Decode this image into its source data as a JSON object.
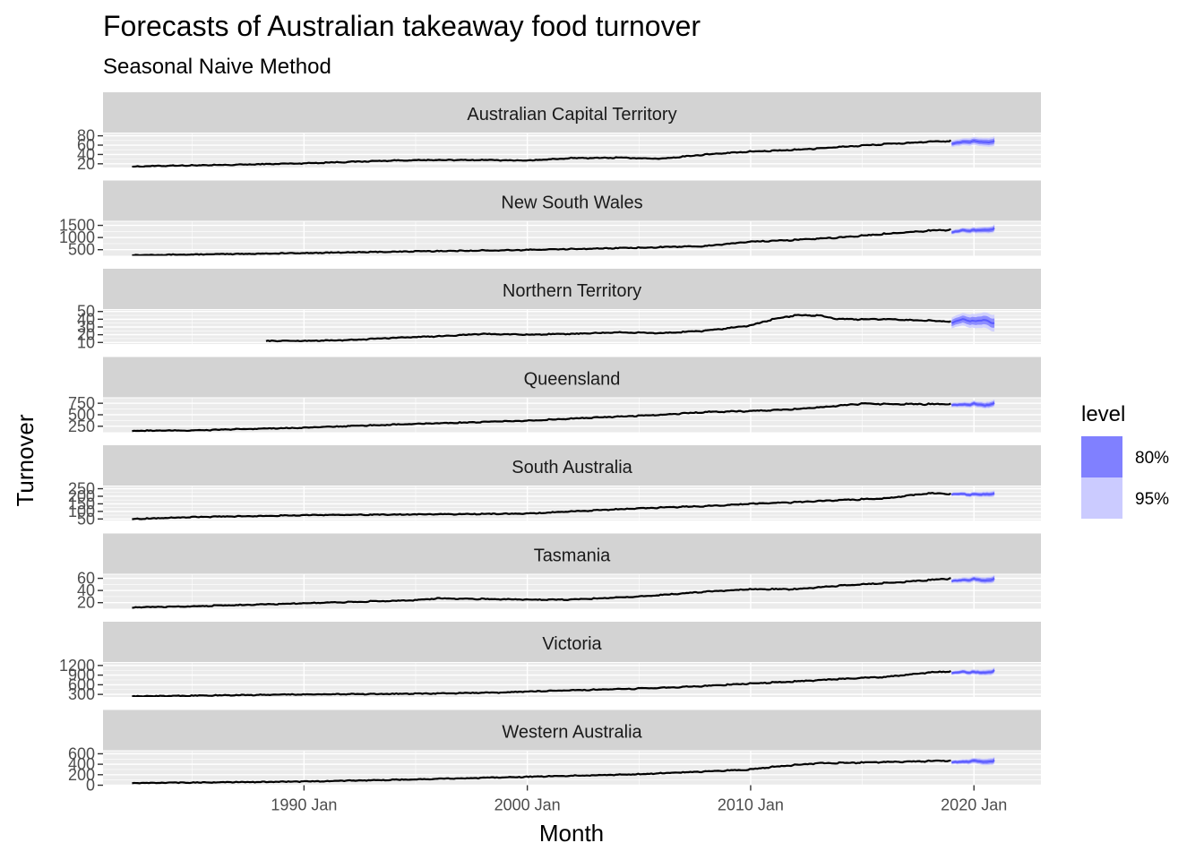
{
  "chart_data": {
    "type": "line",
    "title": "Forecasts of Australian takeaway food turnover",
    "subtitle": "Seasonal Naive Method",
    "xlabel": "Month",
    "ylabel": "Turnover",
    "x_ticks": [
      "1990 Jan",
      "2000 Jan",
      "2010 Jan",
      "2020 Jan"
    ],
    "x_tick_years": [
      1990,
      2000,
      2010,
      2020
    ],
    "xlim": [
      1981,
      2023
    ],
    "grid": true,
    "legend": {
      "title": "level",
      "placement": "right",
      "entries": [
        {
          "label": "80%",
          "color": "#8080ff"
        },
        {
          "label": "95%",
          "color": "#cbcbff"
        }
      ]
    },
    "colors": {
      "history": "#000000",
      "forecast": "#5a5aff",
      "interval80": "#8080ff",
      "interval95": "#cbcbff",
      "panel_bg": "#ebebeb",
      "strip_bg": "#d3d3d3"
    },
    "forecast_range": [
      "2019 Jan",
      "2020 Dec"
    ],
    "facets": [
      {
        "state": "Australian Capital Territory",
        "ylim": [
          12,
          85
        ],
        "y_ticks": [
          20,
          40,
          60,
          80
        ],
        "y_tick_labels": [
          "20",
          "40",
          "60",
          "80"
        ],
        "start": 1982.3,
        "history": [
          [
            1982.3,
            14
          ],
          [
            1984,
            16
          ],
          [
            1986,
            17
          ],
          [
            1988,
            19
          ],
          [
            1990,
            21
          ],
          [
            1992,
            24
          ],
          [
            1994,
            27
          ],
          [
            1996,
            28
          ],
          [
            1998,
            28
          ],
          [
            2000,
            27
          ],
          [
            2002,
            32
          ],
          [
            2004,
            33
          ],
          [
            2006,
            31
          ],
          [
            2008,
            40
          ],
          [
            2010,
            46
          ],
          [
            2012,
            50
          ],
          [
            2014,
            56
          ],
          [
            2016,
            62
          ],
          [
            2018,
            67
          ],
          [
            2019,
            69
          ]
        ],
        "forecast": [
          [
            2019,
            62
          ],
          [
            2019.5,
            67
          ],
          [
            2020,
            68
          ],
          [
            2020.5,
            66
          ],
          [
            2020.99,
            69
          ]
        ],
        "pi80": [
          4,
          6
        ],
        "pi95": [
          7,
          10
        ]
      },
      {
        "state": "New South Wales",
        "ylim": [
          250,
          1650
        ],
        "y_ticks": [
          500,
          1000,
          1500
        ],
        "y_tick_labels": [
          "500",
          "1000",
          "1500"
        ],
        "start": 1982.3,
        "history": [
          [
            1982.3,
            280
          ],
          [
            1985,
            300
          ],
          [
            1990,
            360
          ],
          [
            1995,
            430
          ],
          [
            2000,
            490
          ],
          [
            2005,
            580
          ],
          [
            2008,
            650
          ],
          [
            2010,
            830
          ],
          [
            2012,
            900
          ],
          [
            2014,
            1000
          ],
          [
            2016,
            1150
          ],
          [
            2018,
            1280
          ],
          [
            2019,
            1320
          ]
        ],
        "forecast": [
          [
            2019,
            1200
          ],
          [
            2019.5,
            1300
          ],
          [
            2020,
            1280
          ],
          [
            2020.5,
            1300
          ],
          [
            2020.99,
            1380
          ]
        ],
        "pi80": [
          60,
          100
        ],
        "pi95": [
          90,
          150
        ]
      },
      {
        "state": "Northern Territory",
        "ylim": [
          8,
          52
        ],
        "y_ticks": [
          10,
          20,
          30,
          40,
          50
        ],
        "y_tick_labels": [
          "10",
          "20",
          "30",
          "40",
          "50"
        ],
        "start": 1988.3,
        "history": [
          [
            1988.3,
            12
          ],
          [
            1990,
            12
          ],
          [
            1992,
            13
          ],
          [
            1994,
            16
          ],
          [
            1996,
            18
          ],
          [
            1998,
            21
          ],
          [
            2000,
            20
          ],
          [
            2002,
            21
          ],
          [
            2004,
            23
          ],
          [
            2006,
            22
          ],
          [
            2008,
            25
          ],
          [
            2010,
            32
          ],
          [
            2011,
            40
          ],
          [
            2012,
            45
          ],
          [
            2013,
            45
          ],
          [
            2014,
            40
          ],
          [
            2016,
            40
          ],
          [
            2018,
            38
          ],
          [
            2019,
            37
          ]
        ],
        "forecast": [
          [
            2019,
            35
          ],
          [
            2019.5,
            40
          ],
          [
            2020,
            37
          ],
          [
            2020.5,
            39
          ],
          [
            2020.99,
            34
          ]
        ],
        "pi80": [
          4,
          6
        ],
        "pi95": [
          7,
          11
        ]
      },
      {
        "state": "Queensland",
        "ylim": [
          120,
          860
        ],
        "y_ticks": [
          250,
          500,
          750
        ],
        "y_tick_labels": [
          "250",
          "500",
          "750"
        ],
        "start": 1982.3,
        "history": [
          [
            1982.3,
            150
          ],
          [
            1985,
            160
          ],
          [
            1990,
            220
          ],
          [
            1995,
            300
          ],
          [
            2000,
            370
          ],
          [
            2004,
            460
          ],
          [
            2006,
            500
          ],
          [
            2008,
            560
          ],
          [
            2010,
            580
          ],
          [
            2012,
            620
          ],
          [
            2014,
            700
          ],
          [
            2015,
            740
          ],
          [
            2017,
            730
          ],
          [
            2019,
            730
          ]
        ],
        "forecast": [
          [
            2019,
            700
          ],
          [
            2019.5,
            720
          ],
          [
            2020,
            730
          ],
          [
            2020.5,
            700
          ],
          [
            2020.99,
            760
          ]
        ],
        "pi80": [
          30,
          50
        ],
        "pi95": [
          50,
          80
        ]
      },
      {
        "state": "South Australia",
        "ylim": [
          40,
          265
        ],
        "y_ticks": [
          50,
          100,
          150,
          200,
          250
        ],
        "y_tick_labels": [
          "50",
          "100",
          "150",
          "200",
          "250"
        ],
        "start": 1982.3,
        "history": [
          [
            1982.3,
            50
          ],
          [
            1985,
            62
          ],
          [
            1990,
            75
          ],
          [
            1995,
            80
          ],
          [
            2000,
            85
          ],
          [
            2002,
            100
          ],
          [
            2005,
            120
          ],
          [
            2008,
            135
          ],
          [
            2010,
            150
          ],
          [
            2012,
            160
          ],
          [
            2014,
            175
          ],
          [
            2016,
            185
          ],
          [
            2018,
            220
          ],
          [
            2019,
            215
          ]
        ],
        "forecast": [
          [
            2019,
            210
          ],
          [
            2019.5,
            215
          ],
          [
            2020,
            210
          ],
          [
            2020.5,
            212
          ],
          [
            2020.99,
            220
          ]
        ],
        "pi80": [
          8,
          12
        ],
        "pi95": [
          12,
          20
        ]
      },
      {
        "state": "Tasmania",
        "ylim": [
          10,
          66
        ],
        "y_ticks": [
          20,
          40,
          60
        ],
        "y_tick_labels": [
          "20",
          "40",
          "60"
        ],
        "start": 1982.3,
        "history": [
          [
            1982.3,
            12
          ],
          [
            1985,
            14
          ],
          [
            1990,
            19
          ],
          [
            1995,
            24
          ],
          [
            1996,
            27
          ],
          [
            2000,
            25
          ],
          [
            2002,
            25
          ],
          [
            2005,
            30
          ],
          [
            2008,
            38
          ],
          [
            2010,
            42
          ],
          [
            2012,
            42
          ],
          [
            2014,
            48
          ],
          [
            2016,
            52
          ],
          [
            2018,
            57
          ],
          [
            2019,
            60
          ]
        ],
        "forecast": [
          [
            2019,
            55
          ],
          [
            2019.5,
            57
          ],
          [
            2020,
            58
          ],
          [
            2020.5,
            56
          ],
          [
            2020.99,
            60
          ]
        ],
        "pi80": [
          2,
          4
        ],
        "pi95": [
          4,
          6
        ]
      },
      {
        "state": "Victoria",
        "ylim": [
          220,
          1280
        ],
        "y_ticks": [
          300,
          600,
          900,
          1200
        ],
        "y_tick_labels": [
          "300",
          "600",
          "900",
          "1200"
        ],
        "start": 1982.3,
        "history": [
          [
            1982.3,
            240
          ],
          [
            1985,
            260
          ],
          [
            1990,
            300
          ],
          [
            1995,
            320
          ],
          [
            1999,
            360
          ],
          [
            2000,
            390
          ],
          [
            2005,
            480
          ],
          [
            2008,
            560
          ],
          [
            2010,
            640
          ],
          [
            2012,
            700
          ],
          [
            2014,
            780
          ],
          [
            2016,
            840
          ],
          [
            2018,
            980
          ],
          [
            2019,
            1020
          ]
        ],
        "forecast": [
          [
            2019,
            950
          ],
          [
            2019.5,
            1000
          ],
          [
            2020,
            980
          ],
          [
            2020.5,
            970
          ],
          [
            2020.99,
            1050
          ]
        ],
        "pi80": [
          40,
          60
        ],
        "pi95": [
          60,
          100
        ]
      },
      {
        "state": "Western Australia",
        "ylim": [
          0,
          650
        ],
        "y_ticks": [
          0,
          200,
          400,
          600
        ],
        "y_tick_labels": [
          "0",
          "200",
          "400",
          "600"
        ],
        "start": 1982.3,
        "history": [
          [
            1982.3,
            40
          ],
          [
            1985,
            50
          ],
          [
            1990,
            70
          ],
          [
            1995,
            110
          ],
          [
            2000,
            160
          ],
          [
            2005,
            210
          ],
          [
            2008,
            260
          ],
          [
            2010,
            300
          ],
          [
            2011,
            350
          ],
          [
            2013,
            420
          ],
          [
            2015,
            430
          ],
          [
            2017,
            450
          ],
          [
            2019,
            470
          ]
        ],
        "forecast": [
          [
            2019,
            430
          ],
          [
            2019.5,
            450
          ],
          [
            2020,
            460
          ],
          [
            2020.5,
            440
          ],
          [
            2020.99,
            480
          ]
        ],
        "pi80": [
          25,
          45
        ],
        "pi95": [
          40,
          70
        ]
      }
    ]
  }
}
